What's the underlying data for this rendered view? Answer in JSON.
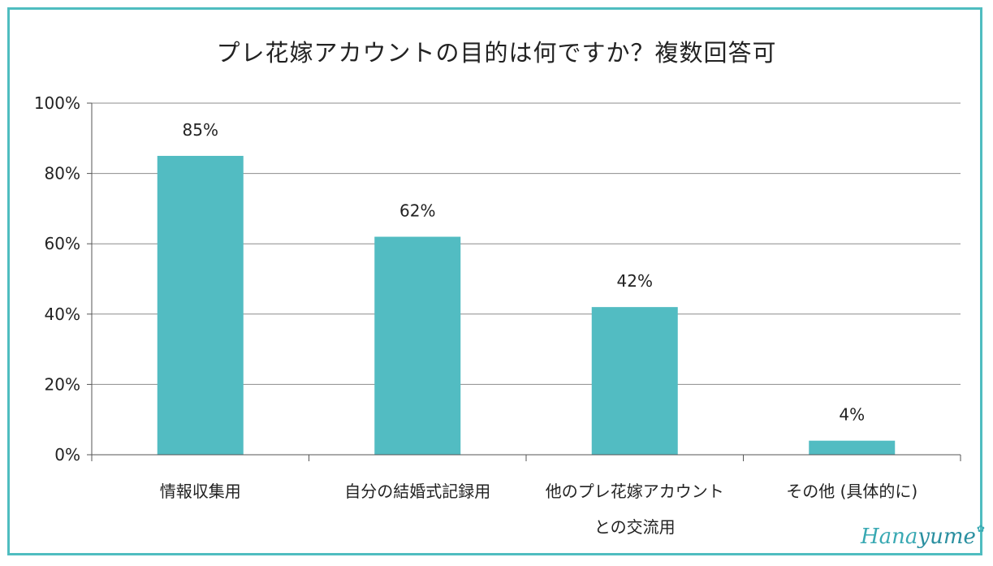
{
  "chart_data": {
    "type": "bar",
    "title": "プレ花嫁アカウントの目的は何ですか？複数回答可",
    "categories": [
      [
        "情報収集用"
      ],
      [
        "自分の結婚式記録用"
      ],
      [
        "他のプレ花嫁アカウント",
        "との交流用"
      ],
      [
        "その他 (具体的に)"
      ]
    ],
    "values": [
      85,
      62,
      42,
      4
    ],
    "data_labels": [
      "85%",
      "62%",
      "42%",
      "4%"
    ],
    "ylim": [
      0,
      100
    ],
    "yticks": [
      0,
      20,
      40,
      60,
      80,
      100
    ],
    "ytick_labels": [
      "0%",
      "20%",
      "40%",
      "60%",
      "80%",
      "100%"
    ],
    "grid": true,
    "bar_color": "#52bcc2",
    "grid_color": "#8c8c8c"
  },
  "logo": {
    "text_a": "Hana",
    "text_b": "yume"
  },
  "colors": {
    "frame": "#4fbdc0"
  }
}
